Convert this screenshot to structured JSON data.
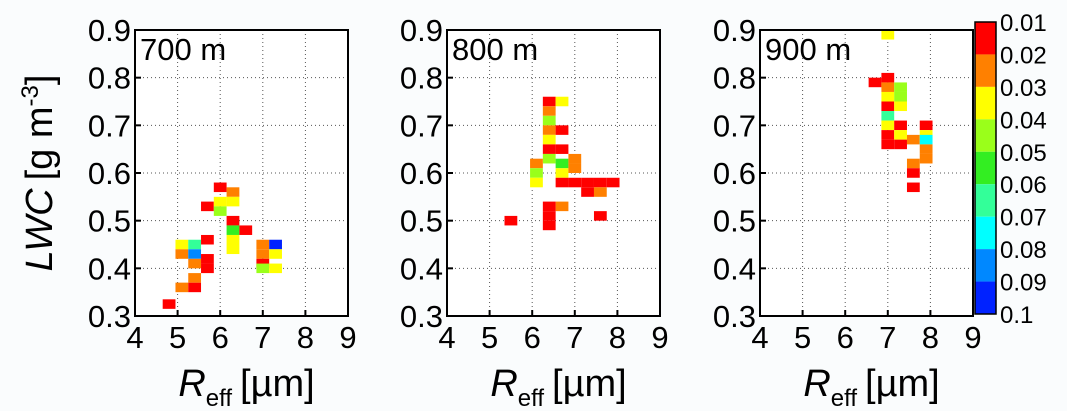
{
  "chart_data": [
    {
      "type": "heatmap",
      "annotation": "700 m",
      "xlabel": {
        "symbol": "R",
        "subscript": "eff",
        "unit": "[µm]"
      },
      "ylabel": {
        "symbol": "LWC",
        "unit": "[g m",
        "superscript": "-3",
        "close": "]"
      },
      "xlim": [
        4,
        9
      ],
      "ylim": [
        0.3,
        0.9
      ],
      "xticks": [
        4,
        5,
        6,
        7,
        8,
        9
      ],
      "yticks": [
        0.3,
        0.4,
        0.5,
        0.6,
        0.7,
        0.8,
        0.9
      ],
      "grid": true,
      "cells": [
        [
          4.8,
          0.325,
          0.015
        ],
        [
          5.1,
          0.36,
          0.025
        ],
        [
          5.4,
          0.36,
          0.015
        ],
        [
          5.4,
          0.38,
          0.025
        ],
        [
          5.7,
          0.4,
          0.015
        ],
        [
          5.7,
          0.42,
          0.015
        ],
        [
          5.7,
          0.46,
          0.015
        ],
        [
          5.1,
          0.45,
          0.035
        ],
        [
          5.1,
          0.43,
          0.025
        ],
        [
          5.4,
          0.45,
          0.065
        ],
        [
          5.4,
          0.43,
          0.085
        ],
        [
          5.4,
          0.41,
          0.025
        ],
        [
          5.7,
          0.53,
          0.015
        ],
        [
          6.0,
          0.57,
          0.015
        ],
        [
          6.0,
          0.54,
          0.035
        ],
        [
          6.0,
          0.52,
          0.045
        ],
        [
          6.3,
          0.56,
          0.025
        ],
        [
          6.3,
          0.54,
          0.035
        ],
        [
          6.3,
          0.5,
          0.015
        ],
        [
          6.3,
          0.48,
          0.055
        ],
        [
          6.3,
          0.46,
          0.035
        ],
        [
          6.3,
          0.44,
          0.035
        ],
        [
          6.6,
          0.48,
          0.015
        ],
        [
          7.0,
          0.45,
          0.025
        ],
        [
          7.0,
          0.43,
          0.025
        ],
        [
          7.0,
          0.41,
          0.015
        ],
        [
          7.0,
          0.4,
          0.045
        ],
        [
          7.3,
          0.45,
          0.095
        ],
        [
          7.3,
          0.43,
          0.035
        ],
        [
          7.3,
          0.4,
          0.035
        ]
      ]
    },
    {
      "type": "heatmap",
      "annotation": "800 m",
      "xlabel": {
        "symbol": "R",
        "subscript": "eff",
        "unit": "[µm]"
      },
      "xlim": [
        4,
        9
      ],
      "ylim": [
        0.3,
        0.9
      ],
      "xticks": [
        4,
        5,
        6,
        7,
        8,
        9
      ],
      "yticks": [
        0.3,
        0.4,
        0.5,
        0.6,
        0.7,
        0.8,
        0.9
      ],
      "grid": true,
      "cells": [
        [
          5.5,
          0.5,
          0.015
        ],
        [
          6.4,
          0.75,
          0.015
        ],
        [
          6.7,
          0.75,
          0.035
        ],
        [
          6.4,
          0.73,
          0.025
        ],
        [
          6.4,
          0.71,
          0.045
        ],
        [
          6.4,
          0.69,
          0.025
        ],
        [
          6.7,
          0.69,
          0.015
        ],
        [
          6.4,
          0.67,
          0.035
        ],
        [
          6.4,
          0.65,
          0.015
        ],
        [
          6.7,
          0.65,
          0.015
        ],
        [
          6.4,
          0.63,
          0.045
        ],
        [
          6.7,
          0.62,
          0.055
        ],
        [
          6.1,
          0.62,
          0.025
        ],
        [
          6.1,
          0.6,
          0.045
        ],
        [
          6.1,
          0.58,
          0.035
        ],
        [
          6.7,
          0.6,
          0.035
        ],
        [
          7.0,
          0.63,
          0.025
        ],
        [
          7.0,
          0.61,
          0.025
        ],
        [
          6.7,
          0.58,
          0.015
        ],
        [
          7.0,
          0.58,
          0.015
        ],
        [
          7.3,
          0.58,
          0.015
        ],
        [
          7.6,
          0.58,
          0.015
        ],
        [
          7.9,
          0.58,
          0.015
        ],
        [
          7.3,
          0.56,
          0.015
        ],
        [
          7.6,
          0.56,
          0.025
        ],
        [
          6.7,
          0.53,
          0.025
        ],
        [
          6.4,
          0.53,
          0.015
        ],
        [
          6.4,
          0.51,
          0.015
        ],
        [
          6.4,
          0.49,
          0.015
        ],
        [
          7.6,
          0.51,
          0.015
        ]
      ]
    },
    {
      "type": "heatmap",
      "annotation": "900 m",
      "xlabel": {
        "symbol": "R",
        "subscript": "eff",
        "unit": "[µm]"
      },
      "xlim": [
        4,
        9
      ],
      "ylim": [
        0.3,
        0.9
      ],
      "xticks": [
        4,
        5,
        6,
        7,
        8,
        9
      ],
      "yticks": [
        0.3,
        0.4,
        0.5,
        0.6,
        0.7,
        0.8,
        0.9
      ],
      "grid": true,
      "cells": [
        [
          7.0,
          0.89,
          0.035
        ],
        [
          6.7,
          0.79,
          0.015
        ],
        [
          7.0,
          0.8,
          0.015
        ],
        [
          7.0,
          0.78,
          0.025
        ],
        [
          7.3,
          0.78,
          0.045
        ],
        [
          7.0,
          0.76,
          0.035
        ],
        [
          7.3,
          0.76,
          0.045
        ],
        [
          7.0,
          0.74,
          0.015
        ],
        [
          7.3,
          0.74,
          0.035
        ],
        [
          7.0,
          0.72,
          0.065
        ],
        [
          7.0,
          0.7,
          0.035
        ],
        [
          7.3,
          0.7,
          0.015
        ],
        [
          7.0,
          0.68,
          0.015
        ],
        [
          7.3,
          0.68,
          0.035
        ],
        [
          7.6,
          0.67,
          0.025
        ],
        [
          7.9,
          0.7,
          0.015
        ],
        [
          7.9,
          0.68,
          0.035
        ],
        [
          7.9,
          0.67,
          0.075
        ],
        [
          7.0,
          0.66,
          0.015
        ],
        [
          7.3,
          0.66,
          0.015
        ],
        [
          7.9,
          0.65,
          0.025
        ],
        [
          7.6,
          0.62,
          0.025
        ],
        [
          7.9,
          0.63,
          0.025
        ],
        [
          7.6,
          0.6,
          0.015
        ],
        [
          7.6,
          0.57,
          0.015
        ]
      ]
    }
  ],
  "colorbar": {
    "ticks": [
      0.01,
      0.02,
      0.03,
      0.04,
      0.05,
      0.06,
      0.07,
      0.08,
      0.09,
      0.1
    ],
    "colors": [
      "#ff0000",
      "#ff8000",
      "#ffff00",
      "#9aff1a",
      "#33ee22",
      "#33ff99",
      "#00ffff",
      "#0088ff",
      "#0022ff"
    ]
  }
}
